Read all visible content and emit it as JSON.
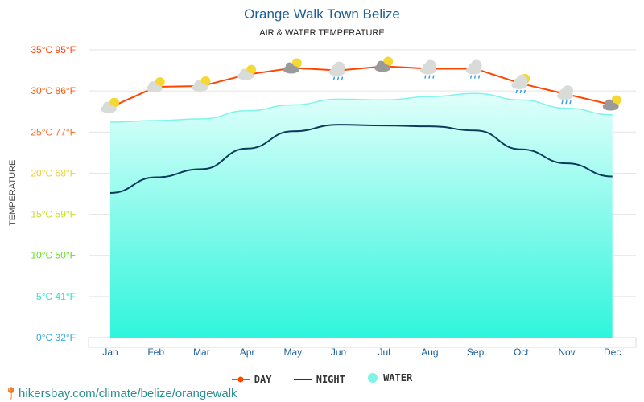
{
  "chart_data": {
    "type": "line",
    "title": "Orange Walk Town Belize",
    "subtitle": "AIR & WATER TEMPERATURE",
    "ylabel": "TEMPERATURE",
    "categories": [
      "Jan",
      "Feb",
      "Mar",
      "Apr",
      "May",
      "Jun",
      "Jul",
      "Aug",
      "Sep",
      "Oct",
      "Nov",
      "Dec"
    ],
    "yticks": [
      {
        "c": 0,
        "label": "0°C 32°F",
        "color": "#3aa8e0"
      },
      {
        "c": 5,
        "label": "5°C 41°F",
        "color": "#2ee0c8"
      },
      {
        "c": 10,
        "label": "10°C 50°F",
        "color": "#66dd22"
      },
      {
        "c": 15,
        "label": "15°C 59°F",
        "color": "#c8e020"
      },
      {
        "c": 20,
        "label": "20°C 68°F",
        "color": "#f0d030"
      },
      {
        "c": 25,
        "label": "25°C 77°F",
        "color": "#ff6a20"
      },
      {
        "c": 30,
        "label": "30°C 86°F",
        "color": "#ff5a10"
      },
      {
        "c": 35,
        "label": "35°C 95°F",
        "color": "#ff4a10"
      }
    ],
    "ylim": [
      0,
      35
    ],
    "grid": true,
    "legend_placement": "bottom",
    "series": [
      {
        "name": "DAY",
        "color": "#ff4500",
        "values": [
          28,
          30.5,
          30.6,
          32,
          32.8,
          32.5,
          33,
          32.7,
          32.7,
          30.9,
          29.6,
          28.3
        ]
      },
      {
        "name": "NIGHT",
        "color": "#0d3b5a",
        "values": [
          17.6,
          19.5,
          20.5,
          23,
          25.1,
          25.9,
          25.8,
          25.7,
          25.2,
          22.9,
          21.2,
          19.6
        ]
      },
      {
        "name": "WATER",
        "color": "#7ff5e8",
        "values": [
          26.2,
          26.4,
          26.6,
          27.6,
          28.3,
          29,
          28.9,
          29.3,
          29.7,
          28.9,
          27.9,
          27.1
        ]
      }
    ],
    "weather_icons": [
      "partly-cloudy",
      "partly-cloudy",
      "partly-cloudy",
      "partly-cloudy",
      "dark-cloud-sun",
      "rain",
      "dark-cloud-sun",
      "rain",
      "rain",
      "rain-sun",
      "rain",
      "dark-cloud-sun"
    ]
  },
  "footer": "hikersbay.com/climate/belize/orangewalk"
}
